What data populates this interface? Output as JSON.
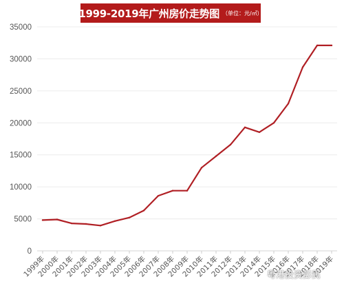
{
  "header": {
    "title": "1999-2019年广州房价走势图",
    "unit_note": "（单位：元/㎡）"
  },
  "chart_data": {
    "type": "line",
    "title": "1999-2019年广州房价走势图",
    "subtitle": "（单位：元/㎡）",
    "xlabel": "",
    "ylabel": "",
    "categories": [
      "1999年",
      "2000年",
      "2001年",
      "2002年",
      "2003年",
      "2004年",
      "2005年",
      "2006年",
      "2007年",
      "2008年",
      "2009年",
      "2010年",
      "2011年",
      "2012年",
      "2013年",
      "2014年",
      "2015年",
      "2016年",
      "2017年",
      "2018年",
      "2019年"
    ],
    "y_ticks": [
      0,
      5000,
      10000,
      15000,
      20000,
      25000,
      30000,
      35000
    ],
    "ylim": [
      0,
      35000
    ],
    "grid": "horizontal",
    "legend": "none",
    "series": [
      {
        "values": [
          4800,
          4900,
          4300,
          4200,
          3950,
          4650,
          5200,
          6300,
          8600,
          9400,
          9400,
          13000,
          14800,
          16600,
          19300,
          18550,
          20000,
          23000,
          28700,
          32100,
          32100
        ],
        "color": "#b01f24"
      }
    ]
  },
  "watermark": {
    "text": "粤港投资彭民"
  }
}
